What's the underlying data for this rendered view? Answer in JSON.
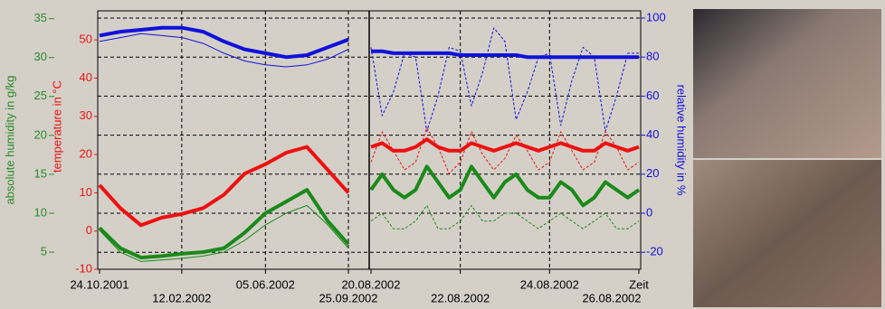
{
  "chart_data": {
    "type": "line",
    "y_label": "absolute humidity in g/kg",
    "y_color": "#2a8a2a",
    "ylim": [
      2.8,
      36
    ],
    "yticks": [
      5,
      10,
      15,
      20,
      25,
      30,
      35
    ],
    "y2_label": "temperature in °C",
    "y2_color": "#ee1111",
    "y2lim": [
      -10,
      57.6
    ],
    "y2ticks": [
      -10,
      0,
      10,
      20,
      30,
      40,
      50
    ],
    "y3_label": "relative humidity in %",
    "y3_color": "#1111dd",
    "y3lim": [
      -28.7,
      103.7
    ],
    "y3ticks": [
      -20,
      0,
      20,
      40,
      60,
      80,
      100
    ],
    "xlabel": "Zeit",
    "grid": true,
    "panels": [
      {
        "xlim": [
          "24.10.2001",
          "25.09.2002"
        ],
        "xticks": [
          "24.10.2001",
          "12.02.2002",
          "05.06.2002",
          "25.09.2002"
        ],
        "series": [
          {
            "axis": "y3",
            "color": "#1111dd",
            "width": 4,
            "dash": false,
            "values": [
              91,
              93,
              94,
              95,
              95,
              93,
              88,
              84,
              82,
              80,
              81,
              85,
              89
            ]
          },
          {
            "axis": "y3",
            "color": "#1111dd",
            "width": 1,
            "dash": false,
            "values": [
              88,
              90,
              92,
              91,
              90,
              87,
              82,
              78,
              76,
              75,
              76,
              79,
              84
            ]
          },
          {
            "axis": "y2",
            "color": "#ee1111",
            "width": 4,
            "dash": false,
            "values": [
              12,
              6,
              1.5,
              3.5,
              4.5,
              6,
              9.5,
              15,
              17.5,
              20.5,
              22,
              16,
              10
            ]
          },
          {
            "axis": "y",
            "color": "#1a8a1a",
            "width": 4,
            "dash": false,
            "values": [
              8.1,
              5.5,
              4.3,
              4.5,
              4.8,
              5.0,
              5.5,
              7.5,
              10,
              11.5,
              13,
              9,
              6
            ]
          },
          {
            "axis": "y",
            "color": "#1a8a1a",
            "width": 1,
            "dash": false,
            "values": [
              7.8,
              5.0,
              3.8,
              4.0,
              4.2,
              4.5,
              5.0,
              6.5,
              8.5,
              10,
              11,
              8.5,
              5.5
            ]
          }
        ]
      },
      {
        "xlim": [
          "20.08.2002",
          "26.08.2002"
        ],
        "xticks": [
          "20.08.2002",
          "22.08.2002",
          "24.08.2002",
          "26.08.2002"
        ],
        "series": [
          {
            "axis": "y3",
            "color": "#1111dd",
            "width": 1,
            "dash": true,
            "values": [
              85,
              50,
              62,
              82,
              80,
              42,
              60,
              85,
              83,
              55,
              72,
              95,
              88,
              48,
              62,
              80,
              82,
              45,
              68,
              85,
              80,
              42,
              60,
              82,
              82
            ]
          },
          {
            "axis": "y3",
            "color": "#1111dd",
            "width": 4,
            "dash": false,
            "values": [
              83,
              83,
              82,
              82,
              82,
              82,
              82,
              82,
              81,
              81,
              81,
              81,
              81,
              81,
              80,
              80,
              80,
              80,
              80,
              80,
              80,
              80,
              80,
              80,
              80
            ]
          },
          {
            "axis": "y2",
            "color": "#ee1111",
            "width": 1,
            "dash": true,
            "values": [
              18,
              26,
              21,
              16,
              18,
              27,
              22,
              15,
              18,
              26,
              20,
              16,
              19,
              25,
              21,
              16,
              18,
              26,
              21,
              16,
              18,
              26,
              22,
              16,
              18
            ]
          },
          {
            "axis": "y2",
            "color": "#ee1111",
            "width": 4,
            "dash": false,
            "values": [
              22,
              23,
              21,
              21,
              22,
              24,
              22,
              21,
              21,
              23,
              22,
              21,
              22,
              23,
              22,
              21,
              22,
              23,
              22,
              21,
              21,
              23,
              22,
              21,
              22
            ]
          },
          {
            "axis": "y",
            "color": "#1a8a1a",
            "width": 4,
            "dash": false,
            "values": [
              13,
              15,
              13,
              12,
              13,
              16,
              14,
              12,
              13,
              16,
              14,
              12,
              14,
              15,
              13,
              12,
              12,
              14,
              13,
              11,
              12,
              14,
              13,
              12,
              13
            ]
          },
          {
            "axis": "y",
            "color": "#1a8a1a",
            "width": 1,
            "dash": true,
            "values": [
              9,
              10,
              8,
              8,
              9,
              11,
              8,
              8,
              9,
              11,
              9,
              9,
              10,
              10,
              9,
              8,
              9,
              10,
              9,
              8,
              9,
              10,
              8,
              8,
              9
            ]
          }
        ]
      }
    ]
  }
}
